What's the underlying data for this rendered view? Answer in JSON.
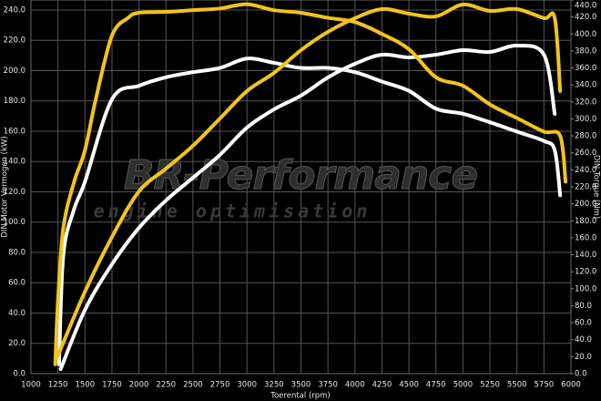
{
  "chart_data": {
    "type": "line",
    "xlabel": "Toerental (rpm)",
    "ylabel": "DIN Motor Vermogen (kW)",
    "y2label": "DIN Torque (Nm)",
    "annotations": [
      "BR-Performance",
      "engine optimisation"
    ],
    "xlim": [
      1000,
      6000
    ],
    "xticks": [
      1000,
      1250,
      1500,
      1750,
      2000,
      2250,
      2500,
      2750,
      3000,
      3250,
      3500,
      3750,
      4000,
      4250,
      4500,
      4750,
      5000,
      5250,
      5500,
      5750,
      6000
    ],
    "ylim": [
      0,
      246.6
    ],
    "yticks": [
      {
        "value": 0,
        "label": "0.0"
      },
      {
        "value": 20,
        "label": "20.0"
      },
      {
        "value": 40,
        "label": "40.0"
      },
      {
        "value": 60,
        "label": "60.0"
      },
      {
        "value": 80,
        "label": "80.0"
      },
      {
        "value": 100,
        "label": "100.0"
      },
      {
        "value": 120,
        "label": "120.0"
      },
      {
        "value": 140,
        "label": "140.0"
      },
      {
        "value": 160,
        "label": "160.0"
      },
      {
        "value": 180,
        "label": "180.0"
      },
      {
        "value": 200,
        "label": "200.0"
      },
      {
        "value": 220,
        "label": "220.0"
      },
      {
        "value": 240,
        "label": "240.0"
      }
    ],
    "y2lim": [
      0,
      440
    ],
    "y2ticks": [
      {
        "value": 0,
        "label": "0.0"
      },
      {
        "value": 20,
        "label": "20.0"
      },
      {
        "value": 40,
        "label": "40.0"
      },
      {
        "value": 60,
        "label": "60.0"
      },
      {
        "value": 80,
        "label": "80.0"
      },
      {
        "value": 100,
        "label": "100.0"
      },
      {
        "value": 120,
        "label": "120.0"
      },
      {
        "value": 140,
        "label": "140.0"
      },
      {
        "value": 160,
        "label": "160.0"
      },
      {
        "value": 180,
        "label": "180.0"
      },
      {
        "value": 200,
        "label": "200.0"
      },
      {
        "value": 220,
        "label": "220.0"
      },
      {
        "value": 240,
        "label": "240.0"
      },
      {
        "value": 260,
        "label": "260.0"
      },
      {
        "value": 280,
        "label": "280.0"
      },
      {
        "value": 300,
        "label": "300.0"
      },
      {
        "value": 320,
        "label": "320.0"
      },
      {
        "value": 340,
        "label": "340.0"
      },
      {
        "value": 360,
        "label": "360.0"
      },
      {
        "value": 380,
        "label": "380.0"
      },
      {
        "value": 400,
        "label": "400.0"
      },
      {
        "value": 420,
        "label": "420.0"
      },
      {
        "value": 440,
        "label": "440.0"
      }
    ],
    "grid": true,
    "series": [
      {
        "color": "#ffffff",
        "axis": "y2",
        "x": [
          1260,
          1300,
          1400,
          1500,
          1750,
          2000,
          2250,
          2500,
          2750,
          3000,
          3250,
          3500,
          3750,
          4000,
          4250,
          4500,
          4750,
          5000,
          5250,
          5500,
          5750,
          5850,
          5900
        ],
        "values": [
          11,
          140,
          194,
          226,
          323,
          339,
          349,
          355,
          360,
          371,
          366,
          360,
          360,
          355,
          344,
          333,
          312,
          306,
          296,
          285,
          274,
          263,
          210
        ]
      },
      {
        "color": "#ffffff",
        "x": [
          1275,
          1500,
          1750,
          2000,
          2250,
          2500,
          2750,
          3000,
          3250,
          3500,
          3750,
          4000,
          4250,
          4500,
          4750,
          5000,
          5250,
          5500,
          5750,
          5850
        ],
        "values": [
          3.0,
          42.1,
          72.2,
          96.2,
          114.3,
          129.3,
          144.4,
          162.4,
          174.4,
          183.5,
          195.5,
          204.5,
          210.5,
          208.7,
          210.5,
          213.5,
          212.3,
          216.5,
          210.5,
          171.4
        ]
      },
      {
        "color": "#f2c41a",
        "axis": "y2",
        "x": [
          1225,
          1250,
          1300,
          1400,
          1500,
          1600,
          1750,
          1900,
          2000,
          2250,
          2500,
          2750,
          3000,
          3250,
          3500,
          3750,
          4000,
          4250,
          4500,
          4750,
          5000,
          5250,
          5500,
          5750,
          5900,
          5950
        ],
        "values": [
          11,
          86,
          172,
          226,
          263,
          323,
          398,
          419,
          425,
          426,
          428,
          430,
          435,
          428,
          425,
          419,
          414,
          400,
          382,
          349,
          339,
          317,
          301,
          285,
          280,
          226
        ]
      },
      {
        "color": "#f2c41a",
        "x": [
          1250,
          1500,
          1750,
          2000,
          2250,
          2500,
          2750,
          3000,
          3250,
          3500,
          3750,
          4000,
          4250,
          4500,
          4750,
          5000,
          5250,
          5500,
          5750,
          5850,
          5900
        ],
        "values": [
          12.0,
          54.1,
          90.2,
          120.3,
          135.3,
          150.4,
          168.4,
          186.5,
          198.5,
          213.5,
          225.6,
          234.6,
          240.6,
          237.6,
          235.8,
          243.6,
          239.4,
          240.6,
          234.6,
          234.6,
          186.5
        ]
      }
    ]
  }
}
